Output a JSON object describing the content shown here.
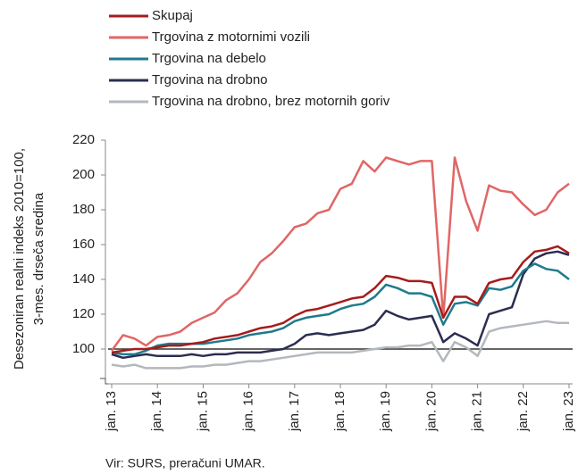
{
  "chart_data": {
    "type": "line",
    "y_label": [
      "Desezoniran realni indeks 2010=100,",
      "3-mes. drseča sredina"
    ],
    "source": "Vir: SURS, preračuni UMAR.",
    "categories": [
      "jan. 13",
      null,
      null,
      null,
      "jan. 14",
      null,
      null,
      null,
      "jan. 15",
      null,
      null,
      null,
      "jan. 16",
      null,
      null,
      null,
      "jan. 17",
      null,
      null,
      null,
      "jan. 18",
      null,
      null,
      null,
      "jan. 19",
      null,
      null,
      null,
      "jan. 20",
      null,
      null,
      null,
      "jan. 21",
      null,
      null,
      null,
      "jan. 22",
      null,
      null,
      null,
      "jan. 23"
    ],
    "ylim": [
      80,
      220
    ],
    "yticks": [
      100,
      120,
      140,
      160,
      180,
      200,
      220
    ],
    "reference_line": 100,
    "series": [
      {
        "name": "Skupaj",
        "color": "#a51c1c",
        "values": [
          98,
          99,
          100,
          100,
          101,
          102,
          102,
          103,
          104,
          106,
          107,
          108,
          110,
          112,
          113,
          115,
          119,
          122,
          123,
          125,
          127,
          129,
          130,
          135,
          142,
          141,
          139,
          139,
          138,
          118,
          130,
          130,
          126,
          138,
          140,
          141,
          150,
          156,
          157,
          159,
          155
        ]
      },
      {
        "name": "Trgovina z motornimi vozili",
        "color": "#e06666",
        "values": [
          99,
          108,
          106,
          102,
          107,
          108,
          110,
          115,
          118,
          121,
          128,
          132,
          140,
          150,
          155,
          162,
          170,
          172,
          178,
          180,
          192,
          195,
          208,
          202,
          210,
          208,
          206,
          208,
          208,
          118,
          210,
          185,
          168,
          194,
          191,
          190,
          183,
          177,
          180,
          190,
          195
        ]
      },
      {
        "name": "Trgovina na debelo",
        "color": "#1f7a8c",
        "values": [
          98,
          97,
          97,
          99,
          102,
          103,
          103,
          103,
          103,
          104,
          105,
          106,
          108,
          109,
          110,
          112,
          116,
          118,
          119,
          120,
          123,
          125,
          126,
          130,
          137,
          135,
          132,
          132,
          130,
          114,
          126,
          127,
          125,
          135,
          134,
          136,
          145,
          149,
          146,
          145,
          140
        ]
      },
      {
        "name": "Trgovina na drobno",
        "color": "#2b2d52",
        "values": [
          97,
          95,
          96,
          97,
          96,
          96,
          96,
          97,
          96,
          97,
          97,
          98,
          98,
          98,
          99,
          100,
          103,
          108,
          109,
          108,
          109,
          110,
          111,
          114,
          122,
          119,
          117,
          118,
          119,
          104,
          109,
          106,
          102,
          120,
          122,
          124,
          143,
          152,
          155,
          156,
          154
        ]
      },
      {
        "name": "Trgovina na drobno, brez motornih goriv",
        "color": "#b3b8bd",
        "values": [
          91,
          90,
          91,
          89,
          89,
          89,
          89,
          90,
          90,
          91,
          91,
          92,
          93,
          93,
          94,
          95,
          96,
          97,
          98,
          98,
          98,
          98,
          99,
          100,
          101,
          101,
          102,
          102,
          104,
          93,
          104,
          101,
          96,
          110,
          112,
          113,
          114,
          115,
          116,
          115,
          115
        ]
      }
    ]
  }
}
